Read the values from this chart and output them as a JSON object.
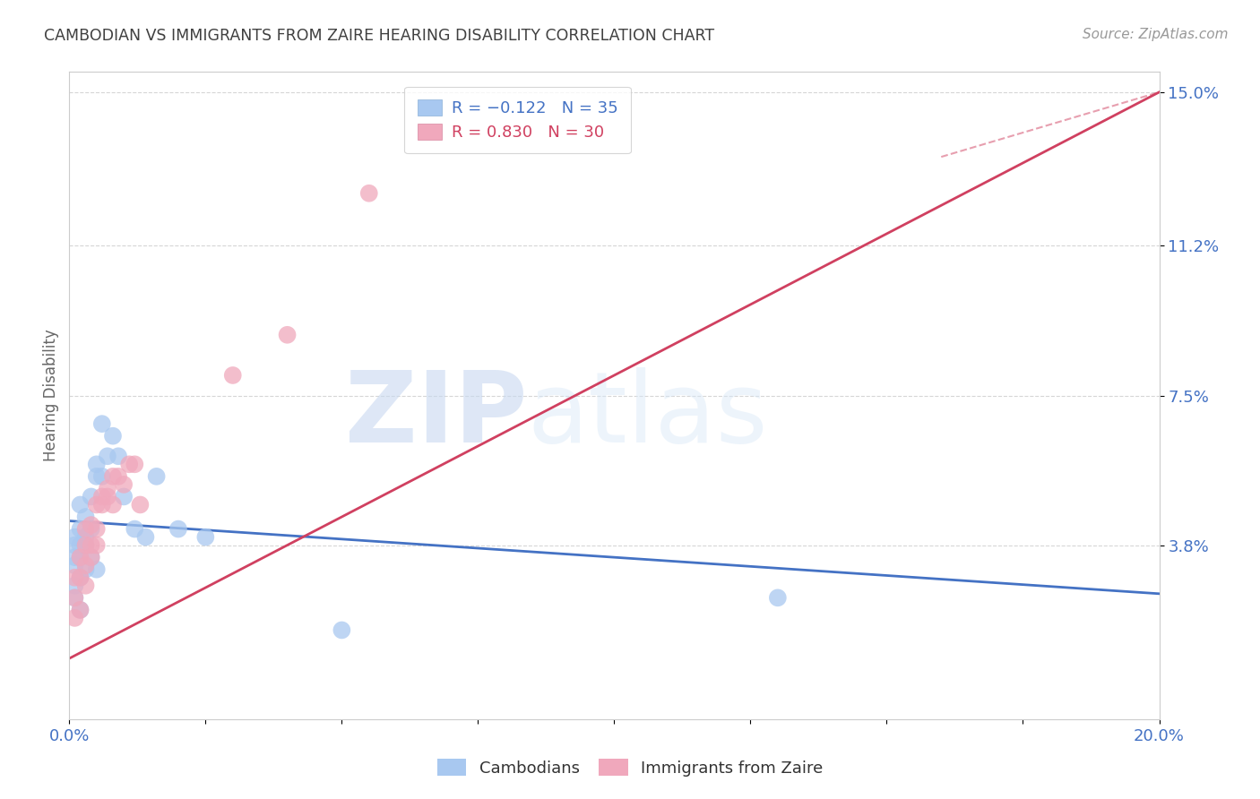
{
  "title": "CAMBODIAN VS IMMIGRANTS FROM ZAIRE HEARING DISABILITY CORRELATION CHART",
  "source": "Source: ZipAtlas.com",
  "ylabel": "Hearing Disability",
  "xlim": [
    0.0,
    0.2
  ],
  "ylim": [
    -0.005,
    0.155
  ],
  "yticks": [
    0.038,
    0.075,
    0.112,
    0.15
  ],
  "ytick_labels": [
    "3.8%",
    "7.5%",
    "11.2%",
    "15.0%"
  ],
  "xticks": [
    0.0,
    0.025,
    0.05,
    0.075,
    0.1,
    0.125,
    0.15,
    0.175,
    0.2
  ],
  "xtick_labels": [
    "0.0%",
    "",
    "",
    "",
    "",
    "",
    "",
    "",
    "20.0%"
  ],
  "cambodian_color": "#a8c8f0",
  "zaire_color": "#f0a8bc",
  "cambodian_label": "Cambodians",
  "zaire_label": "Immigrants from Zaire",
  "legend_r_cambodian": "R = −0.122",
  "legend_n_cambodian": "N = 35",
  "legend_r_zaire": "R = 0.830",
  "legend_n_zaire": "N = 30",
  "trend_cambodian_color": "#4472c4",
  "trend_zaire_color": "#d04060",
  "watermark_zip": "ZIP",
  "watermark_atlas": "atlas",
  "background_color": "#ffffff",
  "grid_color": "#cccccc",
  "axis_label_color": "#4472c4",
  "title_color": "#404040",
  "cambodian_x": [
    0.001,
    0.001,
    0.001,
    0.001,
    0.001,
    0.001,
    0.002,
    0.002,
    0.002,
    0.002,
    0.002,
    0.002,
    0.003,
    0.003,
    0.003,
    0.003,
    0.004,
    0.004,
    0.004,
    0.005,
    0.005,
    0.005,
    0.006,
    0.006,
    0.007,
    0.008,
    0.009,
    0.01,
    0.012,
    0.014,
    0.016,
    0.02,
    0.025,
    0.13,
    0.05
  ],
  "cambodian_y": [
    0.038,
    0.04,
    0.035,
    0.033,
    0.028,
    0.025,
    0.038,
    0.035,
    0.03,
    0.042,
    0.048,
    0.022,
    0.04,
    0.038,
    0.045,
    0.032,
    0.05,
    0.042,
    0.035,
    0.055,
    0.058,
    0.032,
    0.068,
    0.055,
    0.06,
    0.065,
    0.06,
    0.05,
    0.042,
    0.04,
    0.055,
    0.042,
    0.04,
    0.025,
    0.017
  ],
  "zaire_x": [
    0.001,
    0.001,
    0.001,
    0.002,
    0.002,
    0.002,
    0.003,
    0.003,
    0.003,
    0.003,
    0.004,
    0.004,
    0.004,
    0.005,
    0.005,
    0.005,
    0.006,
    0.006,
    0.007,
    0.007,
    0.008,
    0.008,
    0.009,
    0.01,
    0.011,
    0.012,
    0.013,
    0.03,
    0.04,
    0.055
  ],
  "zaire_y": [
    0.03,
    0.025,
    0.02,
    0.035,
    0.03,
    0.022,
    0.038,
    0.033,
    0.042,
    0.028,
    0.038,
    0.043,
    0.035,
    0.042,
    0.048,
    0.038,
    0.048,
    0.05,
    0.05,
    0.052,
    0.048,
    0.055,
    0.055,
    0.053,
    0.058,
    0.058,
    0.048,
    0.08,
    0.09,
    0.125
  ],
  "trend_cam_x0": 0.0,
  "trend_cam_y0": 0.044,
  "trend_cam_x1": 0.2,
  "trend_cam_y1": 0.026,
  "trend_zaire_x0": 0.0,
  "trend_zaire_y0": 0.01,
  "trend_zaire_x1": 0.2,
  "trend_zaire_y1": 0.15
}
